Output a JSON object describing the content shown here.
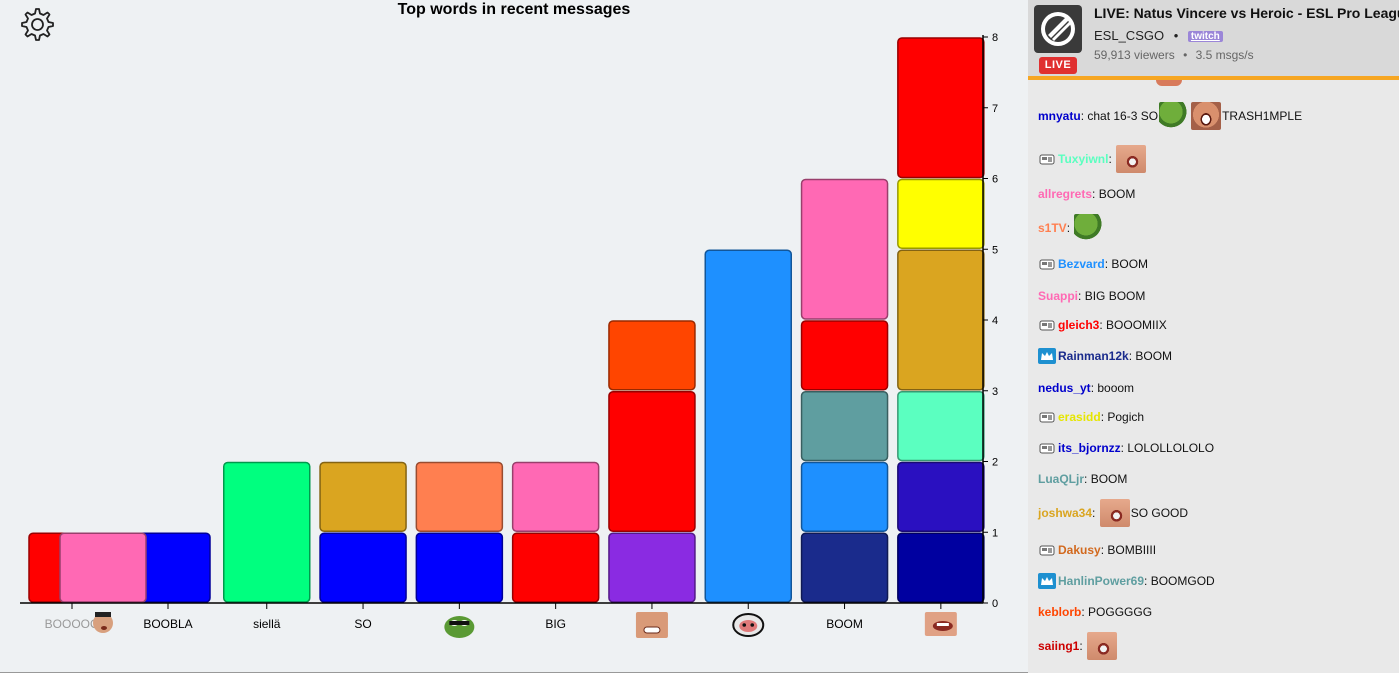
{
  "settings": {
    "icon": "gear-icon"
  },
  "chart_data": {
    "type": "bar",
    "stacked": true,
    "title": "Top words in recent messages",
    "ylim": [
      0,
      8
    ],
    "yticks": [
      0,
      1,
      2,
      3,
      4,
      5,
      6,
      7,
      8
    ],
    "categories": [
      {
        "label": "BOOOOO",
        "kind": "text"
      },
      {
        "label": "BOOBLA",
        "kind": "text"
      },
      {
        "label": "siellä",
        "kind": "text"
      },
      {
        "label": "SO",
        "kind": "text"
      },
      {
        "label": "",
        "kind": "emote",
        "emote": "pepe"
      },
      {
        "label": "BIG",
        "kind": "text"
      },
      {
        "label": "",
        "kind": "emote",
        "emote": "grin"
      },
      {
        "label": "",
        "kind": "emote",
        "emote": "blob"
      },
      {
        "label": "BOOM",
        "kind": "text"
      },
      {
        "label": "",
        "kind": "emote",
        "emote": "mouth"
      }
    ],
    "stacks": [
      [
        {
          "value": 1,
          "color": "#ff0000"
        }
      ],
      [
        {
          "value": 1,
          "color": "#0000ff"
        }
      ],
      [
        {
          "value": 2,
          "color": "#00ff7f"
        }
      ],
      [
        {
          "value": 1,
          "color": "#0000ff"
        },
        {
          "value": 1,
          "color": "#daa520"
        }
      ],
      [
        {
          "value": 1,
          "color": "#0000ff"
        },
        {
          "value": 1,
          "color": "#ff7f50"
        }
      ],
      [
        {
          "value": 1,
          "color": "#ff0000"
        },
        {
          "value": 1,
          "color": "#ff69b4"
        }
      ],
      [
        {
          "value": 1,
          "color": "#8a2be2"
        },
        {
          "value": 2,
          "color": "#ff0000"
        },
        {
          "value": 1,
          "color": "#ff4500"
        }
      ],
      [
        {
          "value": 5,
          "color": "#1e90ff"
        }
      ],
      [
        {
          "value": 1,
          "color": "#1a2b8c"
        },
        {
          "value": 1,
          "color": "#1e90ff"
        },
        {
          "value": 1,
          "color": "#5f9ea0"
        },
        {
          "value": 1,
          "color": "#ff0000"
        },
        {
          "value": 2,
          "color": "#ff69b4"
        }
      ],
      [
        {
          "value": 1,
          "color": "#0000a0"
        },
        {
          "value": 1,
          "color": "#2a10c0"
        },
        {
          "value": 1,
          "color": "#5bffc0"
        },
        {
          "value": 2,
          "color": "#daa520"
        },
        {
          "value": 1,
          "color": "#ffff00"
        },
        {
          "value": 2,
          "color": "#ff0000"
        }
      ]
    ],
    "overlay": {
      "category_index": 0,
      "value": 1,
      "color": "#ff69b4"
    }
  },
  "stream": {
    "title": "LIVE: Natus Vincere vs Heroic - ESL Pro League",
    "channel": "ESL_CSGO",
    "platform": "twitch",
    "viewers": "59,913 viewers",
    "rate": "3.5 msgs/s",
    "live_label": "LIVE"
  },
  "messages": [
    {
      "badge": "",
      "user": "mnyatu",
      "color": "#0000cc",
      "parts": [
        {
          "t": "chat 16-3 SO"
        },
        {
          "e": "pepe"
        },
        {
          "e": "grin"
        },
        {
          "t": "TRASH1MPLE"
        }
      ]
    },
    {
      "badge": "sub",
      "user": "Tuxyiwnl",
      "color": "#5bffc0",
      "parts": [
        {
          "e": "mouth"
        }
      ]
    },
    {
      "badge": "",
      "user": "allregrets",
      "color": "#ff69b4",
      "parts": [
        {
          "t": "BOOM"
        }
      ]
    },
    {
      "badge": "",
      "user": "s1TV",
      "color": "#ff7f50",
      "parts": [
        {
          "e": "pepe"
        }
      ]
    },
    {
      "badge": "sub",
      "user": "Bezvard",
      "color": "#1e90ff",
      "parts": [
        {
          "t": "BOOM"
        }
      ]
    },
    {
      "badge": "",
      "user": "Suappi",
      "color": "#ff69b4",
      "parts": [
        {
          "t": "BIG BOOM"
        }
      ]
    },
    {
      "badge": "sub",
      "user": "gleich3",
      "color": "#ff0000",
      "parts": [
        {
          "t": "BOOOMIIX"
        }
      ]
    },
    {
      "badge": "prime",
      "user": "Rainman12k",
      "color": "#1a2b8c",
      "parts": [
        {
          "t": "BOOM"
        }
      ]
    },
    {
      "badge": "",
      "user": "nedus_yt",
      "color": "#0000cc",
      "parts": [
        {
          "t": "booom"
        }
      ]
    },
    {
      "badge": "sub",
      "user": "erasidd",
      "color": "#e6e600",
      "parts": [
        {
          "t": "Pogich"
        }
      ]
    },
    {
      "badge": "sub",
      "user": "its_bjornzz",
      "color": "#0000cc",
      "parts": [
        {
          "t": "LOLOLLOLOLO"
        }
      ]
    },
    {
      "badge": "",
      "user": "LuaQLjr",
      "color": "#5f9ea0",
      "parts": [
        {
          "t": "BOOM"
        }
      ]
    },
    {
      "badge": "",
      "user": "joshwa34",
      "color": "#daa520",
      "parts": [
        {
          "e": "mouth"
        },
        {
          "t": "SO GOOD"
        }
      ]
    },
    {
      "badge": "sub",
      "user": "Dakusy",
      "color": "#d2691e",
      "parts": [
        {
          "t": "BOMBIIII"
        }
      ]
    },
    {
      "badge": "prime",
      "user": "HanlinPower69",
      "color": "#5f9ea0",
      "parts": [
        {
          "t": "BOOMGOD"
        }
      ]
    },
    {
      "badge": "",
      "user": "keblorb",
      "color": "#ff4500",
      "parts": [
        {
          "t": "POGGGGG"
        }
      ]
    },
    {
      "badge": "",
      "user": "saiing1",
      "color": "#cc0000",
      "parts": [
        {
          "e": "mouth"
        }
      ]
    }
  ]
}
